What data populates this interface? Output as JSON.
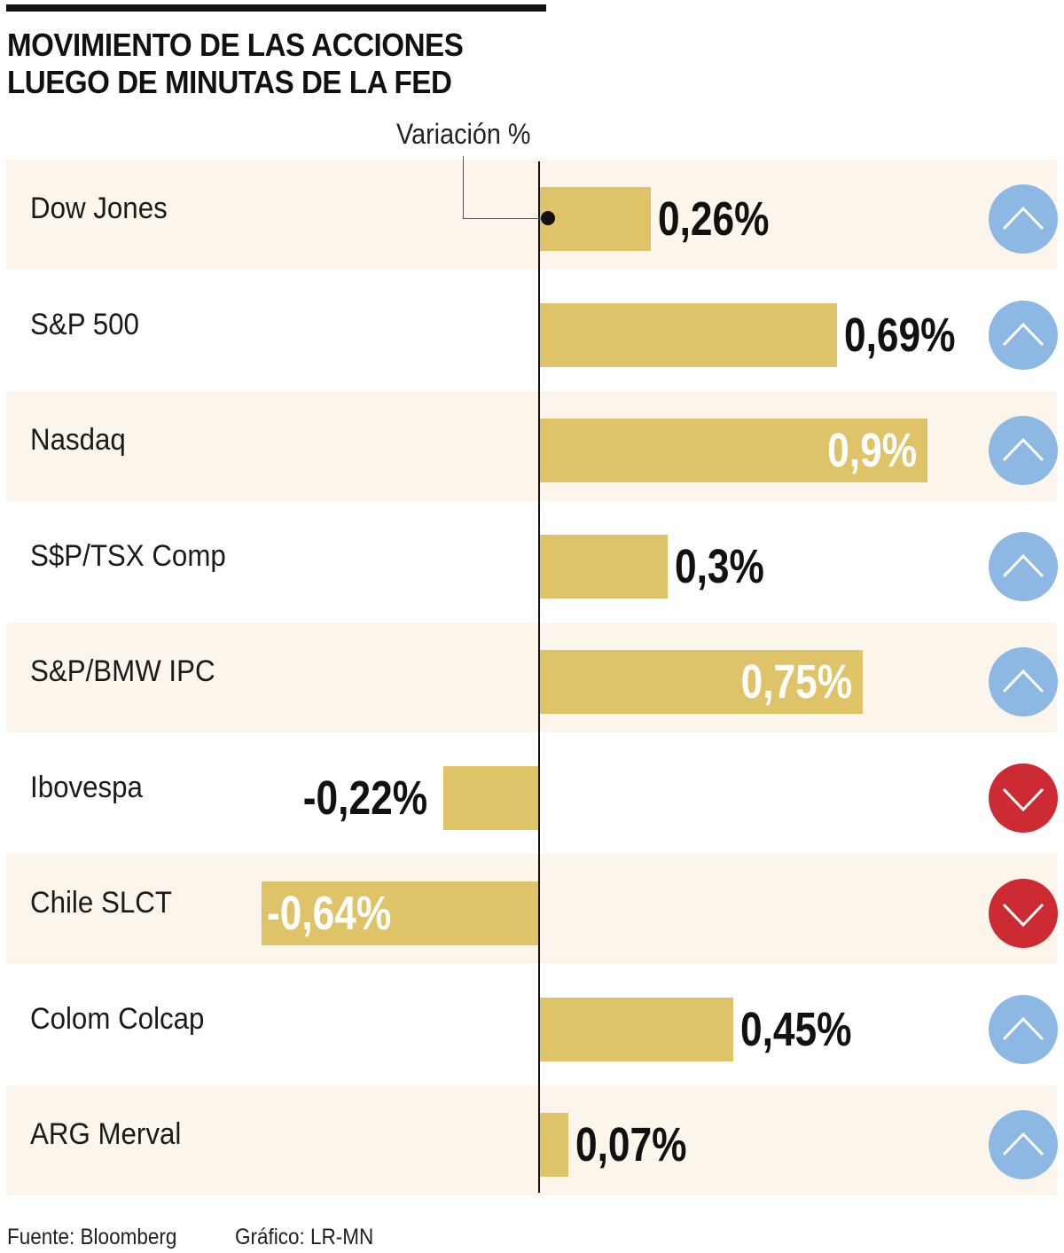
{
  "title_line1": "MOVIMIENTO DE LAS ACCIONES",
  "title_line2": "LUEGO DE MINUTAS DE LA FED",
  "variation_label": "Variación %",
  "footer": {
    "source": "Fuente: Bloomberg",
    "credit": "Gráfico: LR-MN"
  },
  "colors": {
    "bar": "#dfc368",
    "up": "#8cb8e3",
    "down": "#cc2b33",
    "row_shade": "#fbf5ec"
  },
  "chart_data": {
    "type": "bar",
    "orientation": "horizontal",
    "title": "MOVIMIENTO DE LAS ACCIONES LUEGO DE MINUTAS DE LA FED",
    "xlabel": "Variación %",
    "ylabel": "",
    "categories": [
      "Dow Jones",
      "S&P 500",
      "Nasdaq",
      "S$P/TSX Comp",
      "S&P/BMW IPC",
      "Ibovespa",
      "Chile SLCT",
      "Colom Colcap",
      "ARG Merval"
    ],
    "values": [
      0.26,
      0.69,
      0.9,
      0.3,
      0.75,
      -0.22,
      -0.64,
      0.45,
      0.07
    ],
    "labels": [
      "0,26%",
      "0,69%",
      "0,9%",
      "0,3%",
      "0,75%",
      "-0,22%",
      "-0,64%",
      "0,45%",
      "0,07%"
    ],
    "label_inside": [
      false,
      false,
      true,
      false,
      true,
      false,
      true,
      false,
      false
    ],
    "direction": [
      "up",
      "up",
      "up",
      "up",
      "up",
      "down",
      "down",
      "up",
      "up"
    ],
    "xlim": [
      -0.64,
      0.9
    ],
    "grid": false,
    "legend": "none"
  }
}
